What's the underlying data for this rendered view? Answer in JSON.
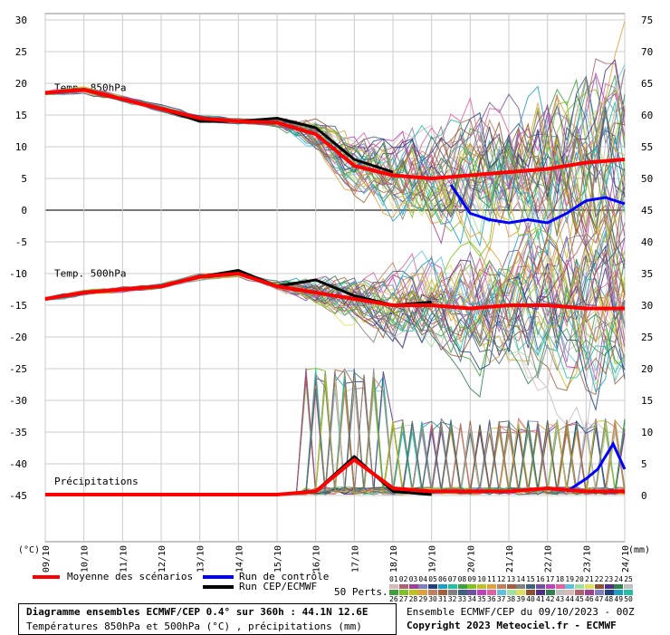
{
  "chart_data": {
    "type": "line",
    "x_ticks": [
      "09/10",
      "10/10",
      "11/10",
      "12/10",
      "13/10",
      "14/10",
      "15/10",
      "16/10",
      "17/10",
      "18/10",
      "19/10",
      "20/10",
      "21/10",
      "22/10",
      "23/10",
      "24/10"
    ],
    "left_axis": {
      "unit": "(°C)",
      "ticks": [
        30,
        25,
        20,
        15,
        10,
        5,
        0,
        -5,
        -10,
        -15,
        -20,
        -25,
        -30,
        -35,
        -40,
        -45
      ]
    },
    "right_axis": {
      "unit": "(mm)",
      "ticks": [
        75,
        70,
        65,
        60,
        55,
        50,
        45,
        40,
        35,
        30,
        25,
        20,
        15,
        10,
        5,
        0
      ]
    },
    "panel_labels": {
      "t850": "Temp. 850hPa",
      "t500": "Temp. 500hPa",
      "precip": "Précipitations"
    },
    "series": [
      {
        "name": "Moyenne des scénarios",
        "color": "#ff0000",
        "t850": [
          18.5,
          19,
          17.5,
          16,
          14.5,
          14,
          13.8,
          12,
          7,
          5.5,
          5,
          5.5,
          6,
          6.5,
          7.5,
          8
        ],
        "t500": [
          -14,
          -13,
          -12.5,
          -12,
          -10.5,
          -10,
          -12,
          -13,
          -14,
          -15,
          -15,
          -15.5,
          -15,
          -15,
          -15.5,
          -15.5
        ],
        "precip": [
          0,
          0,
          0,
          0,
          0,
          0,
          0,
          0.5,
          5.5,
          1,
          0.5,
          0.5,
          0.5,
          1,
          0.5,
          0.5
        ]
      },
      {
        "name": "Run de contrôle",
        "color": "#0000ff",
        "t850": [
          null,
          null,
          null,
          null,
          null,
          null,
          null,
          null,
          null,
          null,
          null,
          null,
          null,
          null,
          null,
          null
        ],
        "t850_tail": [
          [
            19.5,
            4
          ],
          [
            20,
            -0.5
          ],
          [
            20.5,
            -1.5
          ],
          [
            21,
            -2
          ],
          [
            21.5,
            -1.5
          ],
          [
            22,
            -2
          ],
          [
            22.5,
            -0.5
          ],
          [
            23,
            1.5
          ],
          [
            23.5,
            2
          ],
          [
            24,
            1
          ]
        ],
        "precip_tail": [
          [
            22.5,
            0.5
          ],
          [
            23,
            2.5
          ],
          [
            23.3,
            4
          ],
          [
            23.7,
            8
          ],
          [
            24,
            4
          ]
        ]
      },
      {
        "name": "Run CEP/ECMWF",
        "color": "#000000",
        "t850": [
          18.5,
          19,
          17.5,
          16,
          14,
          14,
          14.5,
          13,
          8,
          6,
          null,
          null,
          null,
          null,
          null,
          null
        ],
        "t500": [
          -14,
          -13,
          -12.5,
          -12,
          -10.5,
          -9.5,
          -12,
          -11,
          -13.5,
          -15,
          -14.5,
          null,
          null,
          null,
          null,
          null
        ],
        "precip": [
          0,
          0,
          0,
          0,
          0,
          0,
          0,
          0.5,
          6,
          0.5,
          0,
          null,
          null,
          null,
          null,
          null
        ]
      }
    ],
    "perturbations_label": "50 Perts.",
    "perturbation_numbers_top": [
      "01",
      "02",
      "03",
      "04",
      "05",
      "06",
      "07",
      "08",
      "09",
      "10",
      "11",
      "12",
      "13",
      "14",
      "15",
      "16",
      "17",
      "18",
      "19",
      "20",
      "21",
      "22",
      "23",
      "24",
      "25"
    ],
    "perturbation_numbers_bottom": [
      "26",
      "27",
      "28",
      "29",
      "30",
      "31",
      "32",
      "33",
      "34",
      "35",
      "36",
      "37",
      "38",
      "39",
      "40",
      "41",
      "42",
      "43",
      "44",
      "45",
      "46",
      "47",
      "48",
      "49",
      "50"
    ],
    "perturbation_colors": [
      "#d8b8b8",
      "#b06070",
      "#a04090",
      "#8080c0",
      "#204080",
      "#20a0c0",
      "#20c0a0",
      "#40a040",
      "#80c020",
      "#c0c020",
      "#e0a040",
      "#c08060",
      "#a06040",
      "#808080",
      "#406080",
      "#7050a0",
      "#c040c0",
      "#e060a0",
      "#60c0e0",
      "#a0e0a0",
      "#e0e060",
      "#905030",
      "#503080",
      "#308050",
      "#c0c0c0"
    ],
    "grid": true,
    "legend": "bottom"
  },
  "footer": {
    "title": "Diagramme ensembles ECMWF/CEP 0.4° sur 360h : 44.1N 12.6E",
    "subtitle": "Températures 850hPa et 500hPa (°C) , précipitations (mm)",
    "ensemble": "Ensemble ECMWF/CEP du 09/10/2023 - 00Z",
    "copyright": "Copyright 2023 Meteociel.fr - ECMWF"
  }
}
